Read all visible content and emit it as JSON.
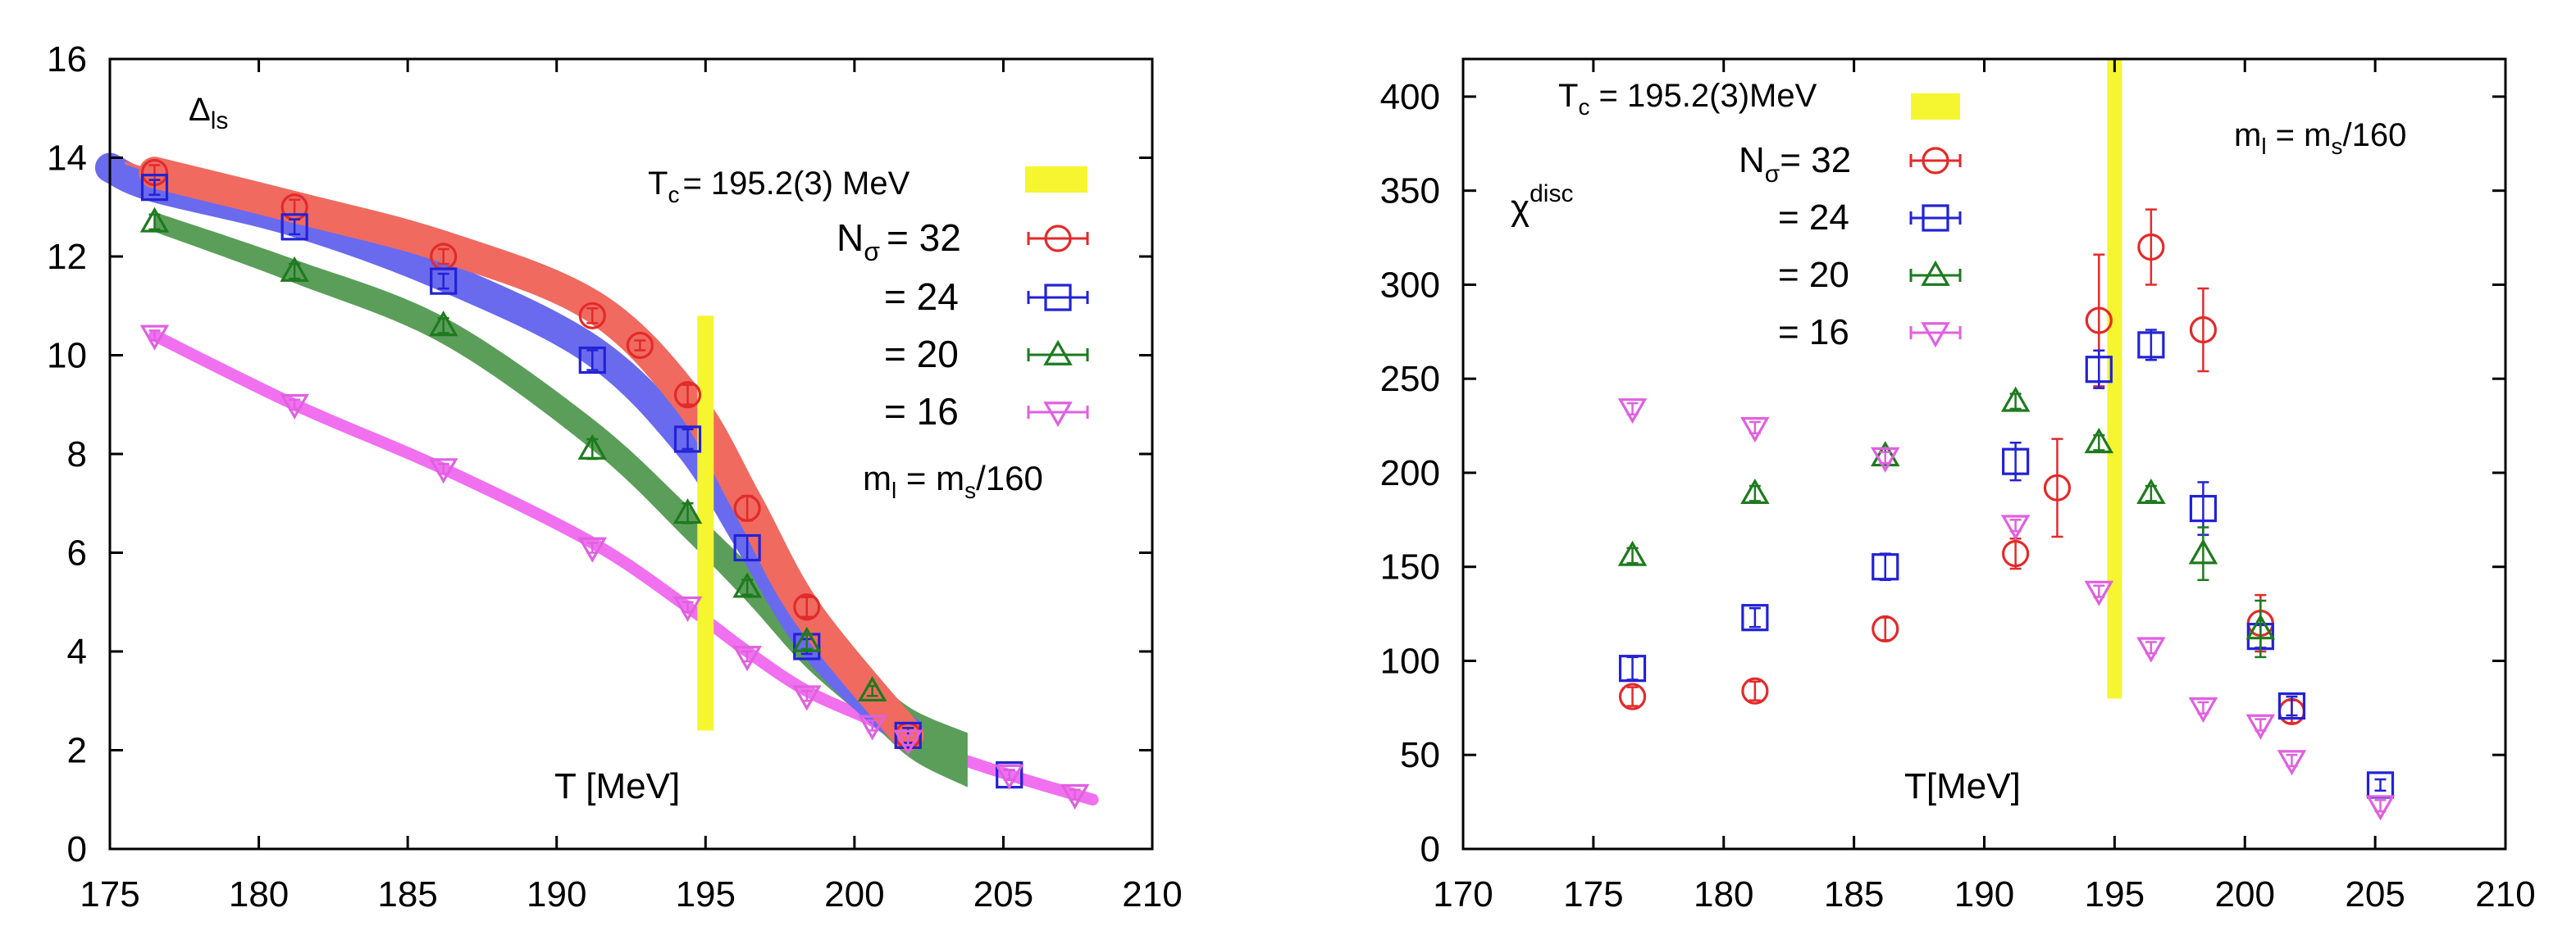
{
  "chart_data": [
    {
      "type": "scatter",
      "panel": "left",
      "ylabel_main": "Δ",
      "ylabel_sub": "ls",
      "xlabel": "T [MeV]",
      "xlim": [
        175,
        210
      ],
      "ylim": [
        0,
        16
      ],
      "xticks": [
        175,
        180,
        185,
        190,
        195,
        200,
        205,
        210
      ],
      "yticks": [
        0,
        2,
        4,
        6,
        8,
        10,
        12,
        14,
        16
      ],
      "tc_label": "T",
      "tc_sub": "c",
      "tc_value": "= 195.2(3) MeV",
      "tc_band": {
        "x": 195.0,
        "y": [
          2.4,
          10.8
        ],
        "color": "#f5f530"
      },
      "mass_label": {
        "m": "m",
        "l": "l",
        "eq": " = m",
        "s": "s",
        "ratio": "/160"
      },
      "legend_head": {
        "n": "N",
        "sigma": "σ"
      },
      "series": [
        {
          "name": "= 32",
          "legend": "= 32",
          "marker": "circle",
          "color": "#e32a2a",
          "band_color": "#f06a60",
          "x": [
            176.5,
            181.2,
            186.2,
            191.2,
            192.8,
            194.4,
            196.4,
            198.4,
            201.8
          ],
          "y": [
            13.7,
            13.0,
            12.0,
            10.8,
            10.2,
            9.2,
            6.9,
            4.9,
            2.3
          ],
          "err": [
            0.15,
            0.15,
            0.15,
            0.15,
            0.1,
            0.2,
            0.25,
            0.2,
            0.15
          ],
          "band": {
            "x": [
              176.5,
              181.2,
              186.2,
              191.2,
              194.4,
              196.4,
              198.4,
              201.8
            ],
            "y": [
              13.7,
              13.0,
              12.2,
              11.0,
              9.1,
              7.0,
              4.8,
              2.3
            ],
            "width": 0.32,
            "x_start_thin": [
              175.5,
              13.9
            ]
          }
        },
        {
          "name": "= 24",
          "legend": "= 24",
          "marker": "square",
          "color": "#2222d6",
          "band_color": "#6a6aee",
          "x": [
            176.5,
            181.2,
            186.2,
            191.2,
            194.4,
            196.4,
            198.4,
            201.8,
            205.2
          ],
          "y": [
            13.4,
            12.6,
            11.5,
            9.9,
            8.3,
            6.1,
            4.1,
            2.3,
            1.5
          ],
          "err": [
            0.15,
            0.15,
            0.15,
            0.2,
            0.2,
            0.25,
            0.15,
            0.15,
            0.1
          ],
          "band": {
            "x": [
              175.0,
              176.5,
              181.2,
              186.2,
              191.2,
              194.4,
              196.4,
              198.4,
              200.6,
              201.8
            ],
            "y": [
              13.8,
              13.4,
              12.7,
              11.6,
              10.1,
              8.2,
              6.3,
              4.3,
              2.9,
              2.4
            ],
            "width": 0.3
          }
        },
        {
          "name": "= 20",
          "legend": "= 20",
          "marker": "triangle-up",
          "color": "#1e7a1e",
          "band_color": "#5a9e5a",
          "x": [
            176.5,
            181.2,
            186.2,
            191.2,
            194.4,
            196.4,
            198.4,
            200.6
          ],
          "y": [
            12.7,
            11.7,
            10.6,
            8.1,
            6.8,
            5.3,
            4.2,
            3.2
          ],
          "err": [
            0.15,
            0.15,
            0.15,
            0.2,
            0.2,
            0.15,
            0.15,
            0.1
          ],
          "band": {
            "x": [
              176.5,
              181.2,
              186.2,
              191.2,
              194.4,
              196.4,
              198.4,
              200.6,
              202.0,
              203.8
            ],
            "y": [
              12.7,
              11.7,
              10.5,
              8.4,
              6.6,
              5.4,
              4.1,
              3.0,
              2.3,
              1.8
            ],
            "width_lo": 0.2,
            "width_hi": 0.55
          }
        },
        {
          "name": "= 16",
          "legend": "= 16",
          "marker": "triangle-down",
          "color": "#e060e0",
          "band_color": "#f070f0",
          "x": [
            176.5,
            181.2,
            186.2,
            191.2,
            194.4,
            196.4,
            198.4,
            200.6,
            201.8,
            205.2,
            207.4
          ],
          "y": [
            10.4,
            9.0,
            7.7,
            6.1,
            4.9,
            3.9,
            3.1,
            2.5,
            2.2,
            1.5,
            1.1
          ],
          "err": [
            0.1,
            0.1,
            0.1,
            0.1,
            0.1,
            0.1,
            0.1,
            0.1,
            0.1,
            0.1,
            0.1
          ],
          "band": {
            "x": [
              176.5,
              181.2,
              186.2,
              191.2,
              194.4,
              196.4,
              198.4,
              200.6,
              201.8,
              205.2,
              208.0
            ],
            "y": [
              10.4,
              9.0,
              7.7,
              6.2,
              4.9,
              4.0,
              3.2,
              2.6,
              2.2,
              1.5,
              1.0
            ],
            "width": 0.12
          }
        }
      ]
    },
    {
      "type": "scatter",
      "panel": "right",
      "ylabel_main": "χ",
      "ylabel_sup": "disc",
      "xlabel": "T[MeV]",
      "xlim": [
        170,
        210
      ],
      "ylim": [
        0,
        420
      ],
      "xticks": [
        170,
        175,
        180,
        185,
        190,
        195,
        200,
        205,
        210
      ],
      "yticks": [
        0,
        50,
        100,
        150,
        200,
        250,
        300,
        350,
        400
      ],
      "tc_label": "T",
      "tc_sub": "c",
      "tc_value": " = 195.2(3)MeV",
      "tc_band": {
        "x": 195.0,
        "y": [
          80,
          420
        ],
        "color": "#f5f530"
      },
      "mass_label": {
        "m": "m",
        "l": "l",
        "eq": " = m",
        "s": "s",
        "ratio": "/160"
      },
      "legend_head": {
        "n": "N",
        "sigma": "σ",
        "eq": "= 32"
      },
      "series": [
        {
          "name": "= 32",
          "legend": "= 32",
          "marker": "circle",
          "color": "#e32a2a",
          "x": [
            176.5,
            181.2,
            186.2,
            191.2,
            192.8,
            194.4,
            196.4,
            198.4,
            200.6,
            201.8
          ],
          "y": [
            81,
            84,
            117,
            157,
            192,
            281,
            320,
            276,
            120,
            73
          ],
          "err": [
            5,
            5,
            6,
            8,
            26,
            35,
            20,
            22,
            15,
            6
          ]
        },
        {
          "name": "= 24",
          "legend": "= 24",
          "marker": "square",
          "color": "#2222d6",
          "x": [
            176.5,
            181.2,
            186.2,
            191.2,
            194.4,
            196.4,
            198.4,
            200.6,
            201.8,
            205.2
          ],
          "y": [
            96,
            123,
            150,
            206,
            255,
            268,
            181,
            113,
            76,
            34
          ],
          "err": [
            6,
            5,
            7,
            10,
            10,
            8,
            14,
            6,
            5,
            3
          ]
        },
        {
          "name": "= 20",
          "legend": "= 20",
          "marker": "triangle-up",
          "color": "#1e7a1e",
          "x": [
            176.5,
            181.2,
            186.2,
            191.2,
            194.4,
            196.4,
            198.4,
            200.6
          ],
          "y": [
            156,
            189,
            209,
            238,
            216,
            189,
            157,
            117
          ],
          "err": [
            4,
            4,
            4,
            4,
            4,
            4,
            14,
            15
          ]
        },
        {
          "name": "= 16",
          "legend": "= 16",
          "marker": "triangle-down",
          "color": "#e060e0",
          "x": [
            176.5,
            181.2,
            186.2,
            191.2,
            194.4,
            196.4,
            198.4,
            200.6,
            201.8,
            205.2
          ],
          "y": [
            234,
            224,
            208,
            172,
            137,
            107,
            75,
            66,
            47,
            23
          ],
          "err": [
            3,
            3,
            3,
            3,
            3,
            3,
            3,
            3,
            3,
            3
          ]
        }
      ]
    }
  ]
}
